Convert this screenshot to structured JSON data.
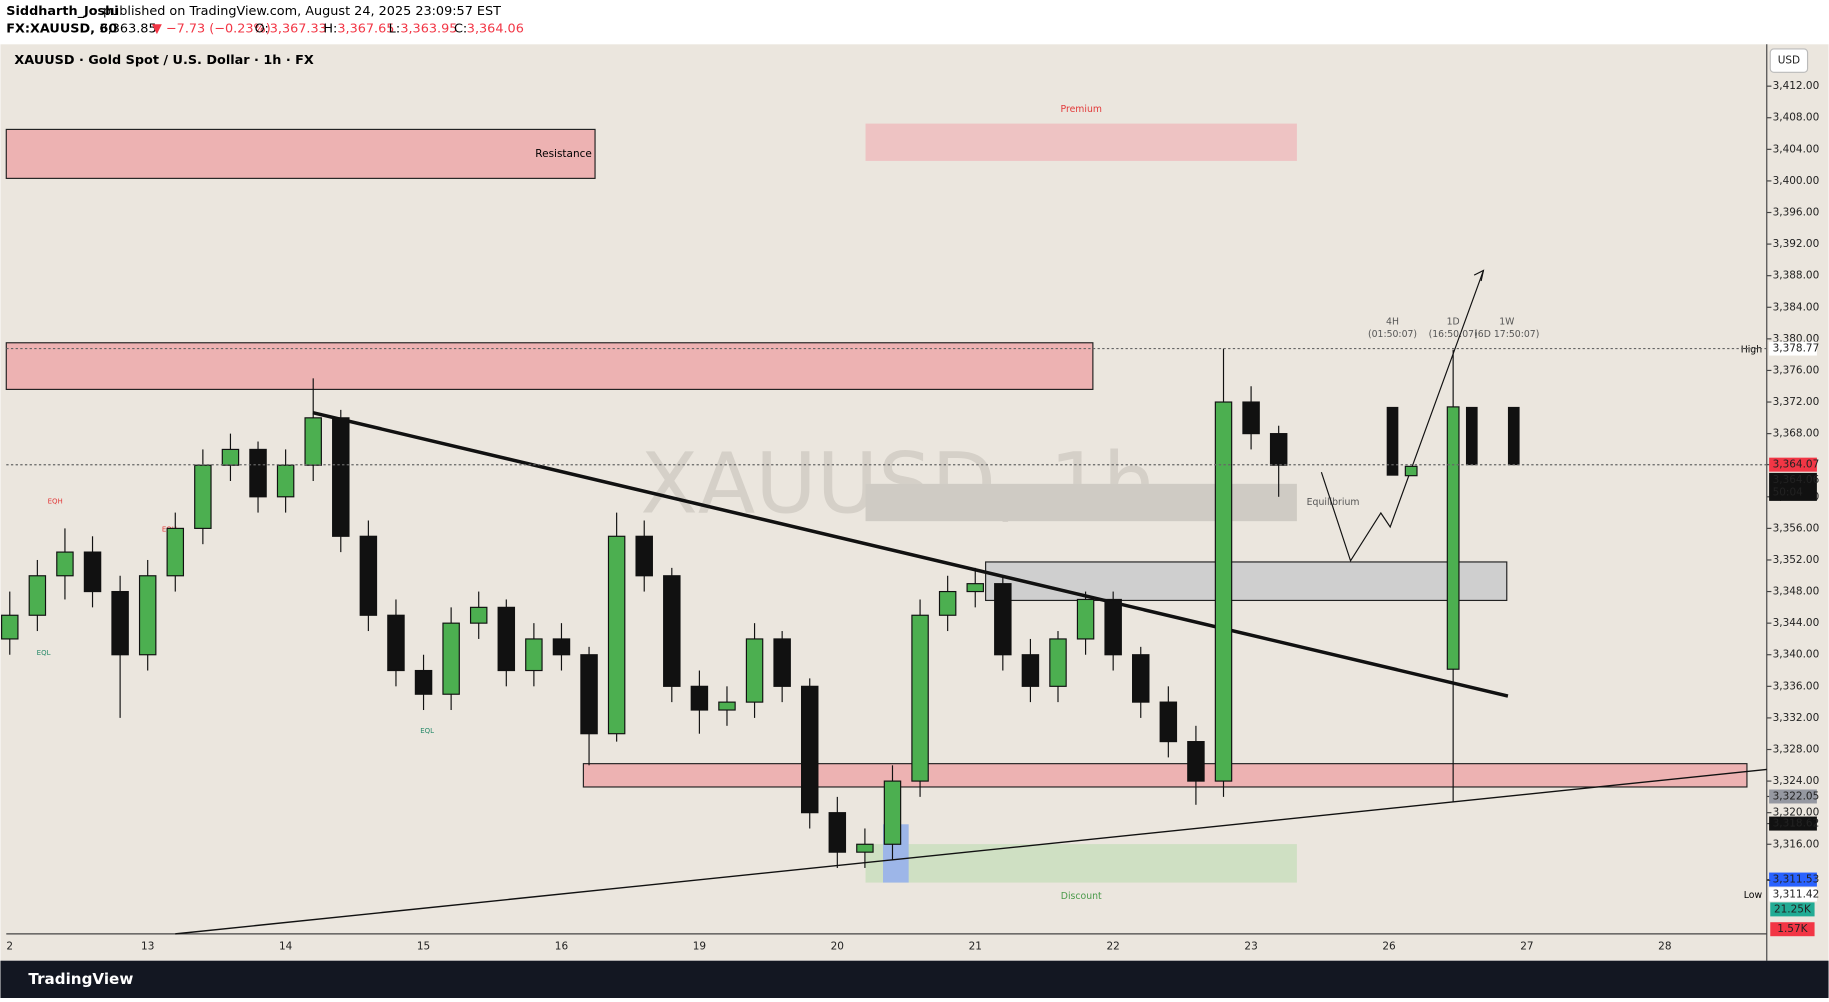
{
  "header": {
    "publisher": "Siddharth_Joshi",
    "published": "published on TradingView.com, August 24, 2025 23:09:57 EST",
    "symbol": "FX:XAUUSD, 60",
    "last": "3,363.85",
    "change": "▼ −7.73 (−0.23%)",
    "o_label": "O:",
    "o": "3,367.33",
    "h_label": "H:",
    "h": "3,367.65",
    "l_label": "L:",
    "l": "3,363.95",
    "c_label": "C:",
    "c": "3,364.06"
  },
  "annotations": {
    "resistance": "Resistance",
    "premium": "Premium",
    "equilibrium": "Equilibrium",
    "discount": "Discount",
    "eqh1": "EQH",
    "eqh2": "EQH",
    "eql1": "EQL",
    "eql2": "EQL",
    "t4h": "4H",
    "t4h_time": "(01:50:07)",
    "t1d": "1D",
    "t1d_time": "(16:50:07)",
    "t1w": "1W",
    "t1w_time": "(6D 17:50:07)",
    "high": "High",
    "low": "Low",
    "countdown": "50:04",
    "vol_up": "21.25K",
    "vol_down": "1.57K",
    "currency": "USD"
  },
  "footer": {
    "brand": "TradingView"
  },
  "chart_data": {
    "type": "candlestick",
    "title": "XAUUSD · Gold Spot / U.S. Dollar · 1h · FX",
    "watermark": "XAUUSD, 1h",
    "categories": [
      "2",
      "13",
      "14",
      "15",
      "16",
      "19",
      "20",
      "21",
      "22",
      "23",
      "26",
      "27",
      "28"
    ],
    "x": [
      0,
      0.2,
      0.4,
      0.6,
      0.8,
      1,
      1.2,
      1.4,
      1.6,
      1.8,
      2,
      2.2,
      2.4,
      2.6,
      2.8,
      3,
      3.2,
      3.4,
      3.6,
      3.8,
      4,
      4.2,
      4.4,
      4.6,
      4.8,
      5,
      5.2,
      5.4,
      5.6,
      5.8,
      6,
      6.2,
      6.4,
      6.6,
      6.8,
      7,
      7.2,
      7.4,
      7.6,
      7.8,
      8,
      8.2,
      8.4,
      8.6,
      8.8,
      9,
      9.2
    ],
    "open": [
      3342,
      3345,
      3350,
      3353,
      3348,
      3340,
      3350,
      3356,
      3364,
      3366,
      3360,
      3364,
      3370,
      3355,
      3345,
      3338,
      3335,
      3344,
      3346,
      3338,
      3342,
      3340,
      3330,
      3355,
      3350,
      3336,
      3333,
      3334,
      3342,
      3336,
      3320,
      3315,
      3316,
      3324,
      3345,
      3348,
      3349,
      3340,
      3336,
      3342,
      3347,
      3340,
      3334,
      3329,
      3324,
      3372,
      3368
    ],
    "high": [
      3348,
      3352,
      3356,
      3355,
      3350,
      3352,
      3358,
      3366,
      3368,
      3367,
      3366,
      3375,
      3371,
      3357,
      3347,
      3340,
      3346,
      3348,
      3347,
      3344,
      3344,
      3341,
      3358,
      3357,
      3351,
      3338,
      3336,
      3344,
      3343,
      3337,
      3322,
      3318,
      3326,
      3347,
      3350,
      3351,
      3350,
      3342,
      3343,
      3348,
      3348,
      3341,
      3336,
      3331,
      3378.77,
      3374,
      3369
    ],
    "low": [
      3340,
      3343,
      3347,
      3346,
      3332,
      3338,
      3348,
      3354,
      3362,
      3358,
      3358,
      3362,
      3353,
      3343,
      3336,
      3333,
      3333,
      3342,
      3336,
      3336,
      3338,
      3326,
      3329,
      3348,
      3334,
      3330,
      3331,
      3332,
      3334,
      3318,
      3313,
      3313,
      3314,
      3322,
      3343,
      3346,
      3338,
      3334,
      3334,
      3340,
      3338,
      3332,
      3327,
      3321,
      3322,
      3366,
      3360
    ],
    "close": [
      3345,
      3350,
      3353,
      3348,
      3340,
      3350,
      3356,
      3364,
      3366,
      3360,
      3364,
      3370,
      3355,
      3345,
      3338,
      3335,
      3344,
      3346,
      3338,
      3342,
      3340,
      3330,
      3355,
      3350,
      3336,
      3333,
      3334,
      3342,
      3336,
      3320,
      3315,
      3316,
      3324,
      3345,
      3348,
      3349,
      3340,
      3336,
      3342,
      3347,
      3340,
      3334,
      3329,
      3324,
      3372,
      3368,
      3364
    ],
    "up_color": "#4caf50",
    "down_color": "#111111",
    "ylim": [
      3304.8,
      3417.3
    ],
    "yticks": [
      {
        "value": 3412,
        "label": "3,412.00"
      },
      {
        "value": 3408,
        "label": "3,408.00"
      },
      {
        "value": 3404,
        "label": "3,404.00"
      },
      {
        "value": 3400,
        "label": "3,400.00"
      },
      {
        "value": 3396,
        "label": "3,396.00"
      },
      {
        "value": 3392,
        "label": "3,392.00"
      },
      {
        "value": 3388,
        "label": "3,388.00"
      },
      {
        "value": 3384,
        "label": "3,384.00"
      },
      {
        "value": 3380,
        "label": "3,380.00"
      },
      {
        "value": 3376,
        "label": "3,376.00"
      },
      {
        "value": 3372,
        "label": "3,372.00"
      },
      {
        "value": 3368,
        "label": "3,368.00"
      },
      {
        "value": 3360,
        "label": "3,360.00"
      },
      {
        "value": 3356,
        "label": "3,356.00"
      },
      {
        "value": 3352,
        "label": "3,352.00"
      },
      {
        "value": 3348,
        "label": "3,348.00"
      },
      {
        "value": 3344,
        "label": "3,344.00"
      },
      {
        "value": 3340,
        "label": "3,340.00"
      },
      {
        "value": 3336,
        "label": "3,336.00"
      },
      {
        "value": 3332,
        "label": "3,332.00"
      },
      {
        "value": 3328,
        "label": "3,328.00"
      },
      {
        "value": 3324,
        "label": "3,324.00"
      },
      {
        "value": 3320,
        "label": "3,320.00"
      },
      {
        "value": 3316,
        "label": "3,316.00"
      }
    ],
    "price_labels": [
      {
        "value": 3378.77,
        "label": "3,378.77",
        "bg": "#ffffff",
        "color": "#222222"
      },
      {
        "value": 3364.07,
        "label": "3,364.07",
        "bg": "#f23645",
        "color": "#ffffff"
      },
      {
        "value": 3364.06,
        "label": "3,364.06",
        "bg": "#111111",
        "color": "#ffffff"
      },
      {
        "value": 3322.05,
        "label": "3,322.05",
        "bg": "#9598a1",
        "color": "#ffffff"
      },
      {
        "value": 3318.62,
        "label": "3,318.62",
        "bg": "#111111",
        "color": "#ffffff"
      },
      {
        "value": 3311.53,
        "label": "3,311.53",
        "bg": "#2962ff",
        "color": "#ffffff"
      },
      {
        "value": 3311.42,
        "label": "3,311.42",
        "bg": "#ffffff",
        "color": "#222222"
      }
    ]
  }
}
